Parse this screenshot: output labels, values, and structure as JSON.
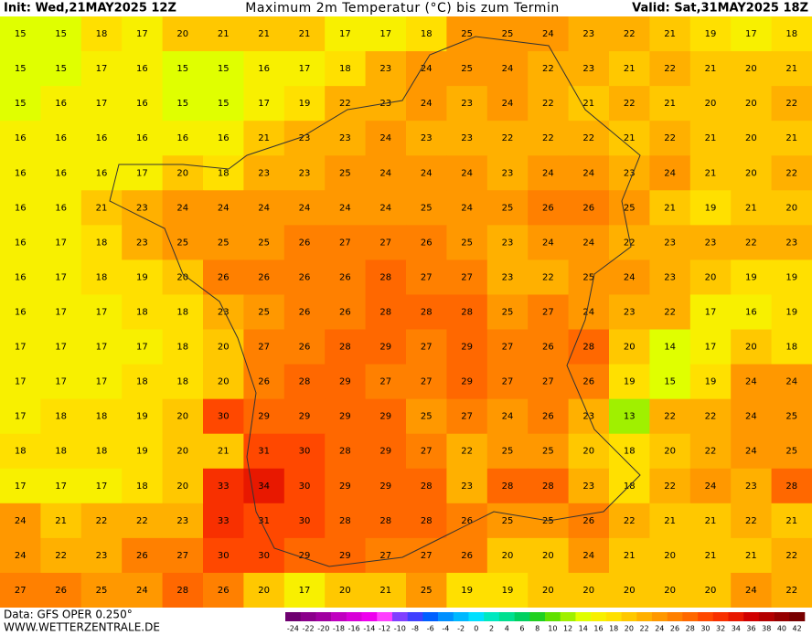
{
  "header": {
    "init": "Init: Wed,21MAY2025 12Z",
    "title": "Maximum 2m Temperatur (°C) bis zum Termin",
    "valid": "Valid: Sat,31MAY2025 18Z"
  },
  "grid": [
    [
      15,
      15,
      18,
      17,
      20,
      21,
      21,
      21,
      17,
      17,
      18,
      25,
      25,
      24,
      23,
      22,
      21,
      19,
      17,
      18
    ],
    [
      15,
      15,
      17,
      16,
      15,
      15,
      16,
      17,
      18,
      23,
      24,
      25,
      24,
      22,
      23,
      21,
      22,
      21,
      20,
      21
    ],
    [
      15,
      16,
      17,
      16,
      15,
      15,
      17,
      19,
      22,
      23,
      24,
      23,
      24,
      22,
      21,
      22,
      21,
      20,
      20,
      22
    ],
    [
      16,
      16,
      16,
      16,
      16,
      16,
      21,
      23,
      23,
      24,
      23,
      23,
      22,
      22,
      22,
      21,
      22,
      21,
      20,
      21
    ],
    [
      16,
      16,
      16,
      17,
      20,
      18,
      23,
      23,
      25,
      24,
      24,
      24,
      23,
      24,
      24,
      23,
      24,
      21,
      20,
      22
    ],
    [
      16,
      16,
      21,
      23,
      24,
      24,
      24,
      24,
      24,
      24,
      25,
      24,
      25,
      26,
      26,
      25,
      21,
      19,
      21,
      20
    ],
    [
      16,
      17,
      18,
      23,
      25,
      25,
      25,
      26,
      27,
      27,
      26,
      25,
      23,
      24,
      24,
      22,
      23,
      23,
      22,
      23
    ],
    [
      16,
      17,
      18,
      19,
      20,
      26,
      26,
      26,
      26,
      28,
      27,
      27,
      23,
      22,
      25,
      24,
      23,
      20,
      19,
      19
    ],
    [
      16,
      17,
      17,
      18,
      18,
      23,
      25,
      26,
      26,
      28,
      28,
      28,
      25,
      27,
      24,
      23,
      22,
      17,
      16,
      19
    ],
    [
      17,
      17,
      17,
      17,
      18,
      20,
      27,
      26,
      28,
      29,
      27,
      29,
      27,
      26,
      28,
      20,
      14,
      17,
      20,
      18
    ],
    [
      17,
      17,
      17,
      18,
      18,
      20,
      26,
      28,
      29,
      27,
      27,
      29,
      27,
      27,
      26,
      19,
      15,
      19,
      24,
      24
    ],
    [
      17,
      18,
      18,
      19,
      20,
      30,
      29,
      29,
      29,
      29,
      25,
      27,
      24,
      26,
      23,
      13,
      22,
      22,
      24,
      25
    ],
    [
      18,
      18,
      18,
      19,
      20,
      21,
      31,
      30,
      28,
      29,
      27,
      22,
      25,
      25,
      20,
      18,
      20,
      22,
      24,
      25
    ],
    [
      17,
      17,
      17,
      18,
      20,
      33,
      34,
      30,
      29,
      29,
      28,
      23,
      28,
      28,
      23,
      18,
      22,
      24,
      23,
      28
    ],
    [
      24,
      21,
      22,
      22,
      23,
      33,
      31,
      30,
      28,
      28,
      28,
      26,
      25,
      25,
      26,
      22,
      21,
      21,
      22,
      21
    ],
    [
      24,
      22,
      23,
      26,
      27,
      30,
      30,
      29,
      29,
      27,
      27,
      26,
      20,
      20,
      24,
      21,
      20,
      21,
      21,
      22
    ],
    [
      27,
      26,
      25,
      24,
      28,
      26,
      20,
      17,
      20,
      21,
      25,
      19,
      19,
      20,
      20,
      20,
      20,
      20,
      24,
      22
    ]
  ],
  "legend": {
    "values": [
      -24,
      -22,
      -20,
      -18,
      -16,
      -14,
      -12,
      -10,
      -8,
      -6,
      -4,
      -2,
      0,
      2,
      4,
      6,
      8,
      10,
      12,
      14,
      16,
      18,
      20,
      22,
      24,
      26,
      28,
      30,
      32,
      34,
      36,
      38,
      40,
      42
    ],
    "colors": [
      "#6e0070",
      "#8b008b",
      "#a000a0",
      "#c000c0",
      "#d800d8",
      "#ee00ee",
      "#ff40ff",
      "#8040ff",
      "#4040ff",
      "#0060ff",
      "#0090ff",
      "#00b8ff",
      "#00e0ff",
      "#00e8c0",
      "#00e090",
      "#00d060",
      "#20d020",
      "#60e000",
      "#a0f000",
      "#e0ff00",
      "#f8f000",
      "#ffe000",
      "#ffc800",
      "#ffb000",
      "#ff9800",
      "#ff8000",
      "#ff6800",
      "#ff4800",
      "#f83000",
      "#e81800",
      "#d00000",
      "#b40000",
      "#960000",
      "#780000"
    ]
  },
  "footer": {
    "data": "Data: GFS OPER 0.250°",
    "site": "WWW.WETTERZENTRALE.DE"
  }
}
